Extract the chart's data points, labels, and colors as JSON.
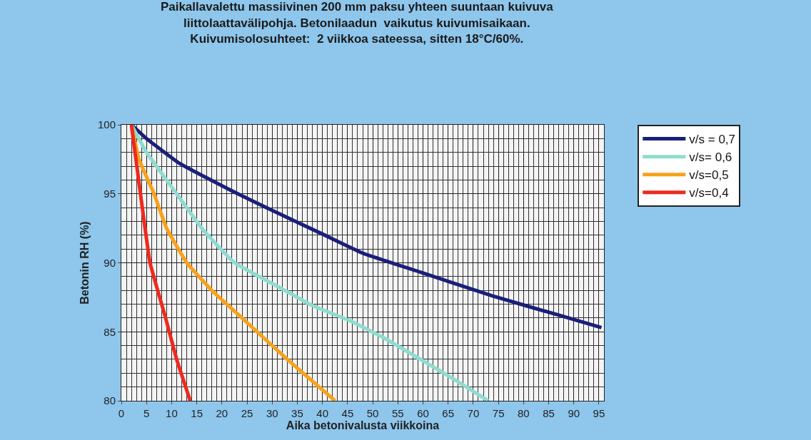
{
  "chart_data": {
    "type": "line",
    "title": "Paikallavalettu massiivinen 200 mm paksu yhteen suuntaan kuivuva\nliittolaattavälipohja. Betonilaadun  vaikutus kuivumisaikaan.\nKuivumisolosuhteet:  2 viikkoa sateessa, sitten 18°C/60%.",
    "xlabel": "Aika betonivalusta viikkoina",
    "ylabel": "Betonin RH (%)",
    "xlim": [
      0,
      96
    ],
    "ylim": [
      80,
      100
    ],
    "xticks": [
      0,
      5,
      10,
      15,
      20,
      25,
      30,
      35,
      40,
      45,
      50,
      55,
      60,
      65,
      70,
      75,
      80,
      85,
      90,
      95
    ],
    "yticks": [
      80,
      85,
      90,
      95,
      100
    ],
    "grid": true,
    "legend": "right",
    "marker": "none",
    "line_style": "solid",
    "series": [
      {
        "name": "v/s = 0,7",
        "color": "#1a1f7a",
        "x": [
          2,
          5,
          11.6,
          22.6,
          30,
          39.9,
          48,
          59.7,
          73.8,
          88,
          95.5
        ],
        "values": [
          100,
          99,
          97.2,
          95.1,
          93.8,
          92.1,
          90.7,
          89.3,
          87.6,
          86.1,
          85.3
        ]
      },
      {
        "name": "v/s= 0,6",
        "color": "#8fdcd0",
        "x": [
          2,
          5,
          11,
          16,
          22.5,
          30,
          38,
          45.5,
          52,
          60,
          66,
          73
        ],
        "values": [
          100,
          98,
          95,
          92.5,
          90,
          88.5,
          86.9,
          85.8,
          84.6,
          82.9,
          81.6,
          80
        ]
      },
      {
        "name": "v/s=0,5",
        "color": "#f7a21b",
        "x": [
          2,
          3.5,
          6.5,
          9,
          13,
          18,
          24,
          33,
          42.5
        ],
        "values": [
          100,
          97.5,
          95,
          92.5,
          90,
          88,
          86,
          83,
          80
        ]
      },
      {
        "name": "v/s=0,4",
        "color": "#ee2a1e",
        "x": [
          2,
          3.8,
          5.7,
          8.8,
          11,
          13.7
        ],
        "values": [
          100,
          95,
          90,
          86,
          83,
          80
        ]
      }
    ]
  }
}
